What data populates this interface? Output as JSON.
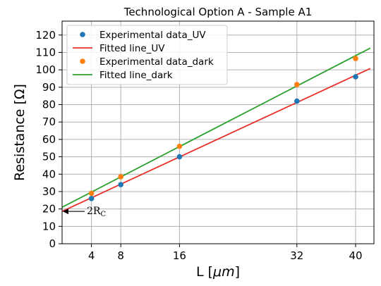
{
  "chart_data": {
    "type": "scatter",
    "title": "Technological Option A - Sample A1",
    "xlabel_text": "L [",
    "xlabel_unit": "μm",
    "xlabel_close": "]",
    "ylabel": "Resistance [Ω]",
    "xlim": [
      0,
      42.5
    ],
    "ylim": [
      0,
      128
    ],
    "x_ticks": [
      4,
      8,
      16,
      32,
      40
    ],
    "y_ticks": [
      0,
      10,
      20,
      30,
      40,
      50,
      60,
      70,
      80,
      90,
      100,
      110,
      120
    ],
    "grid": true,
    "legend_position": "top-left",
    "series": [
      {
        "name": "Experimental data_UV",
        "kind": "scatter",
        "color": "#1f77b4",
        "x": [
          4,
          8,
          16,
          32,
          40
        ],
        "y": [
          26,
          34,
          50,
          82,
          96
        ]
      },
      {
        "name": "Fitted line_UV",
        "kind": "line",
        "color": "#e8302a",
        "x": [
          0,
          42
        ],
        "y": [
          18.6,
          100.8
        ]
      },
      {
        "name": "Experimental data_dark",
        "kind": "scatter",
        "color": "#ff7f0e",
        "x": [
          4,
          8,
          16,
          32,
          40
        ],
        "y": [
          29,
          38.5,
          56,
          91.5,
          106.5
        ]
      },
      {
        "name": "Fitted line_dark",
        "kind": "line",
        "color": "#2ca02c",
        "x": [
          0,
          42
        ],
        "y": [
          21,
          112.5
        ]
      }
    ],
    "annotations": [
      {
        "text_base": "2R",
        "text_sub": "C",
        "arrow_to": [
          0,
          18.6
        ]
      }
    ]
  }
}
